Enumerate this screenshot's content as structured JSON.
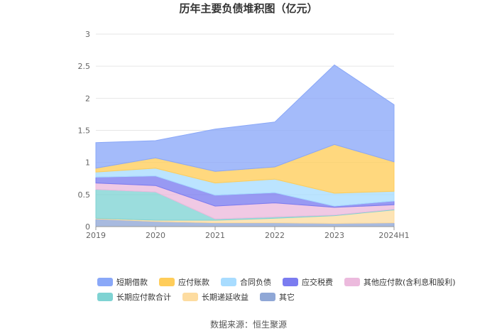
{
  "chart_data": {
    "type": "area",
    "stacked": true,
    "title": "历年主要负债堆积图（亿元）",
    "x": [
      "2019",
      "2020",
      "2021",
      "2022",
      "2023",
      "2024H1"
    ],
    "ylim": [
      0,
      3
    ],
    "yticks": [
      "0",
      "0.5",
      "1",
      "1.5",
      "2",
      "2.5",
      "3"
    ],
    "grid": true,
    "legend_position": "bottom",
    "series": [
      {
        "name": "短期借款",
        "color": "#8aa8f8",
        "values": [
          0.4,
          0.27,
          0.66,
          0.7,
          1.24,
          0.89
        ]
      },
      {
        "name": "应付账款",
        "color": "#ffcd5a",
        "values": [
          0.06,
          0.16,
          0.18,
          0.19,
          0.76,
          0.46
        ]
      },
      {
        "name": "合同负债",
        "color": "#a8dcff",
        "values": [
          0.08,
          0.12,
          0.19,
          0.21,
          0.2,
          0.15
        ]
      },
      {
        "name": "应交税费",
        "color": "#7b7cf0",
        "values": [
          0.09,
          0.15,
          0.17,
          0.16,
          0.02,
          0.06
        ]
      },
      {
        "name": "其他应付款(含利息和股利)",
        "color": "#ecbadd",
        "values": [
          0.1,
          0.1,
          0.2,
          0.22,
          0.12,
          0.07
        ]
      },
      {
        "name": "长期应付款合计",
        "color": "#7fd3d3",
        "values": [
          0.45,
          0.44,
          0.02,
          0.02,
          0.01,
          0.01
        ]
      },
      {
        "name": "长期递延收益",
        "color": "#fddca0",
        "values": [
          0.01,
          0.02,
          0.04,
          0.07,
          0.12,
          0.2
        ]
      },
      {
        "name": "其它",
        "color": "#8fa7d6",
        "values": [
          0.12,
          0.08,
          0.06,
          0.06,
          0.05,
          0.06
        ]
      }
    ]
  },
  "footer": {
    "source": "数据来源：恒生聚源"
  }
}
